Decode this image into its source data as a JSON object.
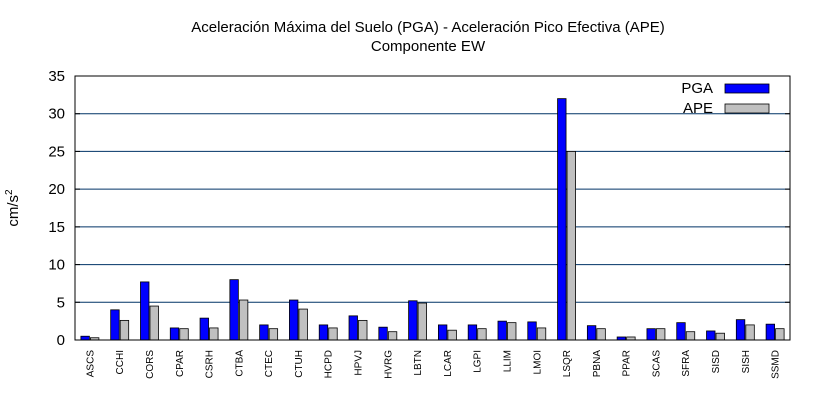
{
  "chart_data": {
    "type": "bar",
    "title": "Aceleración Máxima del Suelo (PGA) -  Aceleración Pico Efectiva (APE)",
    "subtitle": "Componente EW",
    "xlabel": "",
    "ylabel": "cm/s",
    "ylabel_superscript": "2",
    "ylim": [
      0,
      35
    ],
    "yticks": [
      0,
      5,
      10,
      15,
      20,
      25,
      30,
      35
    ],
    "grid": "horizontal",
    "legend_position": "top-right",
    "categories": [
      "ASCS",
      "CCHI",
      "CORS",
      "CPAR",
      "CSRH",
      "CTBA",
      "CTEC",
      "CTUH",
      "HCPD",
      "HPVJ",
      "HVRG",
      "LBTN",
      "LCAR",
      "LGPI",
      "LLIM",
      "LMOI",
      "LSQR",
      "PBNA",
      "PPAR",
      "SCAS",
      "SFRA",
      "SISD",
      "SISH",
      "SSMD"
    ],
    "series": [
      {
        "name": "PGA",
        "color": "#0000ff",
        "values": [
          0.5,
          4.0,
          7.7,
          1.6,
          2.9,
          8.0,
          2.0,
          5.3,
          2.0,
          3.2,
          1.7,
          5.2,
          2.0,
          2.0,
          2.5,
          2.4,
          32.0,
          1.9,
          0.4,
          1.5,
          2.3,
          1.2,
          2.7,
          2.1
        ]
      },
      {
        "name": "APE",
        "color": "#c0c0c0",
        "values": [
          0.3,
          2.6,
          4.5,
          1.5,
          1.6,
          5.3,
          1.5,
          4.1,
          1.6,
          2.6,
          1.1,
          4.9,
          1.3,
          1.5,
          2.3,
          1.6,
          25.0,
          1.5,
          0.4,
          1.5,
          1.1,
          0.9,
          2.0,
          1.5
        ]
      }
    ]
  }
}
